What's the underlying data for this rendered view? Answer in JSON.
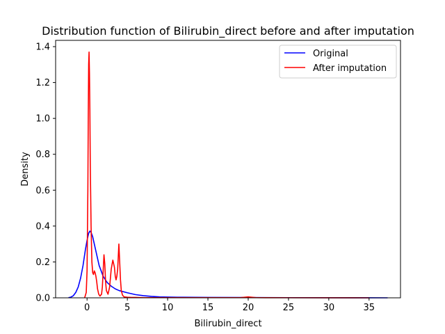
{
  "chart_data": {
    "type": "line",
    "title": "Distribution function of Bilirubin_direct before and after imputation",
    "xlabel": "Bilirubin_direct",
    "ylabel": "Density",
    "xlim": [
      -3.9,
      38.9
    ],
    "ylim": [
      0,
      1.435
    ],
    "xticks": [
      0,
      5,
      10,
      15,
      20,
      25,
      30,
      35
    ],
    "yticks": [
      0.0,
      0.2,
      0.4,
      0.6,
      0.8,
      1.0,
      1.2,
      1.4
    ],
    "xtick_labels": [
      "0",
      "5",
      "10",
      "15",
      "20",
      "25",
      "30",
      "35"
    ],
    "ytick_labels": [
      "0.0",
      "0.2",
      "0.4",
      "0.6",
      "0.8",
      "1.0",
      "1.2",
      "1.4"
    ],
    "grid": false,
    "legend_position": "top-right",
    "series": [
      {
        "name": "Original",
        "color": "#0000ff",
        "x": [
          -2.3,
          -2.0,
          -1.7,
          -1.4,
          -1.1,
          -0.8,
          -0.5,
          -0.2,
          0.0,
          0.2,
          0.35,
          0.5,
          0.7,
          0.9,
          1.2,
          1.5,
          2.0,
          2.5,
          3.0,
          3.5,
          4.0,
          5.0,
          6.0,
          7.0,
          8.0,
          9.0,
          10.0,
          12.0,
          15.0,
          20.0,
          25.0,
          30.0,
          35.0,
          37.3
        ],
        "y": [
          0.001,
          0.004,
          0.012,
          0.03,
          0.06,
          0.11,
          0.18,
          0.27,
          0.32,
          0.36,
          0.372,
          0.365,
          0.34,
          0.3,
          0.24,
          0.18,
          0.12,
          0.085,
          0.065,
          0.05,
          0.04,
          0.028,
          0.018,
          0.012,
          0.008,
          0.005,
          0.004,
          0.003,
          0.002,
          0.0015,
          0.001,
          0.0005,
          0.0002,
          0.0
        ]
      },
      {
        "name": "After imputation",
        "color": "#ff0000",
        "x": [
          -0.3,
          -0.1,
          0.0,
          0.1,
          0.15,
          0.2,
          0.25,
          0.3,
          0.35,
          0.4,
          0.5,
          0.6,
          0.7,
          0.8,
          0.9,
          1.0,
          1.1,
          1.2,
          1.3,
          1.45,
          1.6,
          1.8,
          1.9,
          2.0,
          2.1,
          2.2,
          2.3,
          2.4,
          2.6,
          2.8,
          3.0,
          3.2,
          3.4,
          3.5,
          3.6,
          3.7,
          3.8,
          3.95,
          4.05,
          4.15,
          4.25,
          4.4,
          4.6,
          5.0,
          5.5,
          6.0,
          7.0,
          8.0,
          9.0,
          10.0,
          12.0,
          15.0,
          19.0,
          20.0,
          21.0,
          25.0,
          30.0,
          35.0
        ],
        "y": [
          0.0,
          0.03,
          0.15,
          0.6,
          1.0,
          1.3,
          1.37,
          1.25,
          1.05,
          0.75,
          0.4,
          0.2,
          0.14,
          0.13,
          0.15,
          0.14,
          0.12,
          0.09,
          0.05,
          0.02,
          0.01,
          0.02,
          0.06,
          0.15,
          0.24,
          0.19,
          0.09,
          0.04,
          0.02,
          0.06,
          0.16,
          0.21,
          0.17,
          0.12,
          0.1,
          0.12,
          0.16,
          0.3,
          0.2,
          0.1,
          0.04,
          0.015,
          0.005,
          0.003,
          0.002,
          0.002,
          0.001,
          0.001,
          0.001,
          0.001,
          0.001,
          0.001,
          0.001,
          0.005,
          0.001,
          0.0005,
          0.0002,
          0.0
        ]
      }
    ]
  }
}
